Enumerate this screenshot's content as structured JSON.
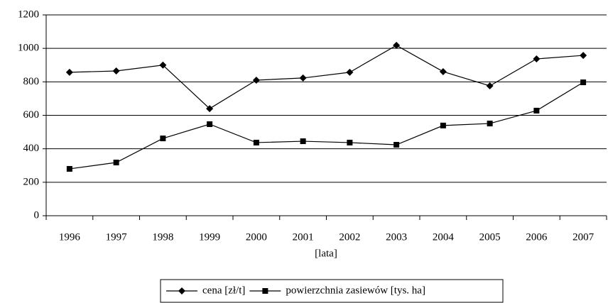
{
  "chart_data": {
    "type": "line",
    "x_label": "[lata]",
    "categories": [
      "1996",
      "1997",
      "1998",
      "1999",
      "2000",
      "2001",
      "2002",
      "2003",
      "2004",
      "2005",
      "2006",
      "2007"
    ],
    "series": [
      {
        "name": "cena [zł/t]",
        "color": "#000000",
        "marker": "diamond",
        "values": [
          857,
          865,
          900,
          640,
          810,
          823,
          857,
          1018,
          861,
          776,
          937,
          958
        ]
      },
      {
        "name": "powierzchnia zasiewów [tys. ha]",
        "color": "#000000",
        "marker": "square",
        "values": [
          280,
          318,
          462,
          547,
          437,
          445,
          437,
          424,
          539,
          551,
          628,
          797
        ]
      }
    ],
    "ylim": [
      0,
      1200
    ],
    "yticks": [
      0,
      200,
      400,
      600,
      800,
      1000,
      1200
    ],
    "grid": true,
    "legend": "bottom"
  }
}
